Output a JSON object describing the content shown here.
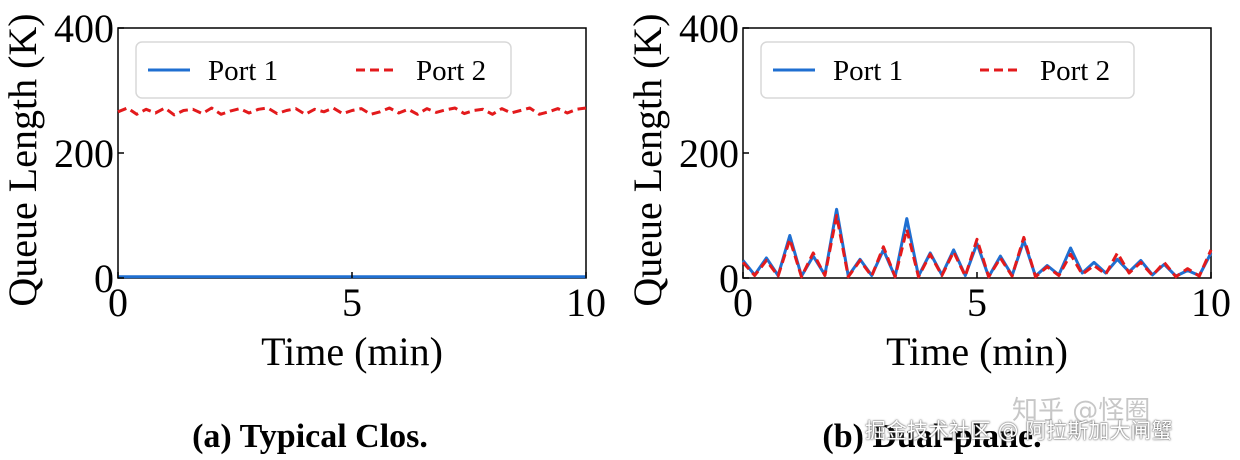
{
  "colors": {
    "port1": "#1f6fd1",
    "port2": "#e31a1c",
    "axis": "#000000"
  },
  "chart_data": [
    {
      "type": "line",
      "title": "(a) Typical Clos.",
      "xlabel": "Time (min)",
      "ylabel": "Queue Length (K)",
      "xlim": [
        0,
        10
      ],
      "ylim": [
        0,
        400
      ],
      "xticks": [
        "0",
        "5",
        "10"
      ],
      "yticks": [
        "0",
        "200",
        "400"
      ],
      "legend": {
        "position": "top",
        "entries": [
          "Port 1",
          "Port 2"
        ]
      },
      "x": [
        0,
        0.2,
        0.4,
        0.6,
        0.8,
        1,
        1.2,
        1.4,
        1.6,
        1.8,
        2,
        2.2,
        2.4,
        2.6,
        2.8,
        3,
        3.2,
        3.4,
        3.6,
        3.8,
        4,
        4.2,
        4.4,
        4.6,
        4.8,
        5,
        5.2,
        5.4,
        5.6,
        5.8,
        6,
        6.2,
        6.4,
        6.6,
        6.8,
        7,
        7.2,
        7.4,
        7.6,
        7.8,
        8,
        8.2,
        8.4,
        8.6,
        8.8,
        9,
        9.2,
        9.4,
        9.6,
        9.8,
        10
      ],
      "series": [
        {
          "name": "Port 1",
          "style": "solid",
          "values": [
            2,
            2,
            2,
            2,
            2,
            2,
            2,
            2,
            2,
            2,
            2,
            2,
            2,
            2,
            2,
            2,
            2,
            2,
            2,
            2,
            2,
            2,
            2,
            2,
            2,
            2,
            2,
            2,
            2,
            2,
            2,
            2,
            2,
            2,
            2,
            2,
            2,
            2,
            2,
            2,
            2,
            2,
            2,
            2,
            2,
            2,
            2,
            2,
            2,
            2,
            2
          ]
        },
        {
          "name": "Port 2",
          "style": "dashed",
          "values": [
            266,
            272,
            262,
            270,
            264,
            272,
            261,
            268,
            270,
            263,
            272,
            262,
            267,
            271,
            264,
            270,
            272,
            263,
            268,
            271,
            262,
            270,
            266,
            272,
            263,
            268,
            271,
            262,
            266,
            272,
            264,
            270,
            262,
            271,
            265,
            269,
            272,
            263,
            268,
            270,
            262,
            271,
            264,
            268,
            272,
            262,
            266,
            271,
            264,
            270,
            272
          ]
        }
      ]
    },
    {
      "type": "line",
      "title": "(b) Dual-plane.",
      "xlabel": "Time (min)",
      "ylabel": "Queue Length (K)",
      "xlim": [
        0,
        10
      ],
      "ylim": [
        0,
        400
      ],
      "xticks": [
        "0",
        "5",
        "10"
      ],
      "yticks": [
        "0",
        "200",
        "400"
      ],
      "legend": {
        "position": "top",
        "entries": [
          "Port 1",
          "Port 2"
        ]
      },
      "x": [
        0,
        0.25,
        0.5,
        0.75,
        1,
        1.25,
        1.5,
        1.75,
        2,
        2.25,
        2.5,
        2.75,
        3,
        3.25,
        3.5,
        3.75,
        4,
        4.25,
        4.5,
        4.75,
        5,
        5.25,
        5.5,
        5.75,
        6,
        6.25,
        6.5,
        6.75,
        7,
        7.25,
        7.5,
        7.75,
        8,
        8.25,
        8.5,
        8.75,
        9,
        9.25,
        9.5,
        9.75,
        10
      ],
      "series": [
        {
          "name": "Port 1",
          "style": "solid",
          "values": [
            28,
            5,
            32,
            4,
            68,
            3,
            35,
            5,
            110,
            3,
            30,
            4,
            45,
            2,
            95,
            3,
            40,
            5,
            45,
            4,
            55,
            2,
            35,
            4,
            60,
            3,
            20,
            5,
            48,
            8,
            25,
            8,
            30,
            10,
            28,
            5,
            22,
            3,
            12,
            4,
            40
          ]
        },
        {
          "name": "Port 2",
          "style": "dashed",
          "values": [
            25,
            4,
            28,
            3,
            62,
            2,
            40,
            4,
            100,
            2,
            28,
            3,
            50,
            2,
            78,
            2,
            38,
            4,
            42,
            3,
            62,
            2,
            32,
            3,
            65,
            2,
            18,
            4,
            38,
            6,
            20,
            6,
            40,
            8,
            25,
            4,
            25,
            2,
            15,
            3,
            45
          ]
        }
      ]
    }
  ],
  "watermarks": {
    "w1": "知乎 @怪圈",
    "w2": "掘金技术社区 @ 阿拉斯加大闸蟹"
  }
}
